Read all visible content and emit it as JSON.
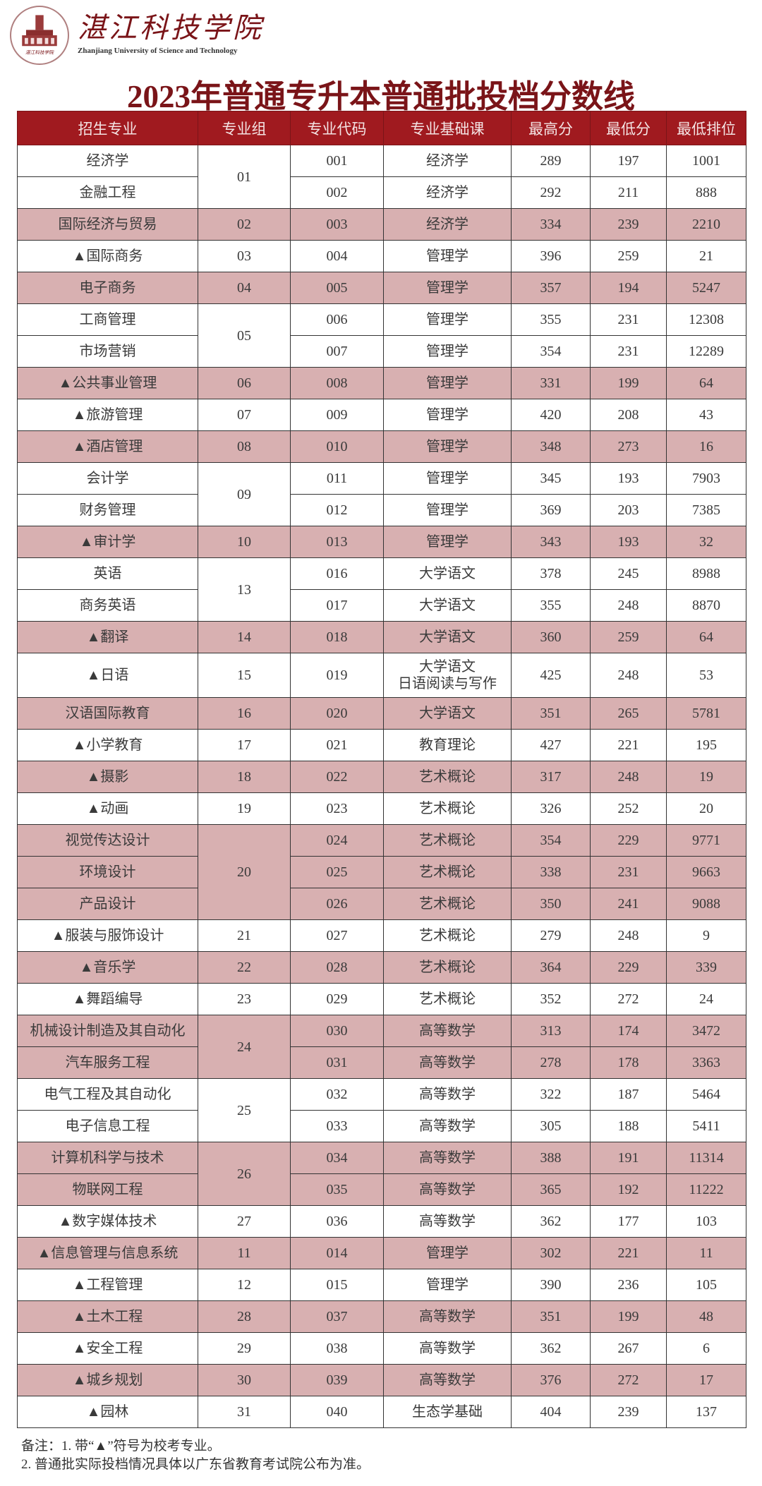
{
  "header": {
    "logo_text_cn": "湛江科技学院",
    "logo_text_en": "Zhanjiang University of Science and Technology",
    "title": "2023年普通专升本普通批投档分数线"
  },
  "colors": {
    "header_bg": "#a01a1f",
    "title": "#7a1418",
    "shaded_row": "#d8b0b1"
  },
  "table": {
    "columns": [
      "招生专业",
      "专业组",
      "专业代码",
      "专业基础课",
      "最高分",
      "最低分",
      "最低排位"
    ],
    "rows": [
      {
        "major": "经济学",
        "group": "01",
        "code": "001",
        "course": "经济学",
        "max": "289",
        "min": "197",
        "rank": "1001",
        "shaded": false
      },
      {
        "major": "金融工程",
        "group": "01",
        "code": "002",
        "course": "经济学",
        "max": "292",
        "min": "211",
        "rank": "888",
        "shaded": false
      },
      {
        "major": "国际经济与贸易",
        "group": "02",
        "code": "003",
        "course": "经济学",
        "max": "334",
        "min": "239",
        "rank": "2210",
        "shaded": true
      },
      {
        "major": "▲国际商务",
        "group": "03",
        "code": "004",
        "course": "管理学",
        "max": "396",
        "min": "259",
        "rank": "21",
        "shaded": false
      },
      {
        "major": "电子商务",
        "group": "04",
        "code": "005",
        "course": "管理学",
        "max": "357",
        "min": "194",
        "rank": "5247",
        "shaded": true
      },
      {
        "major": "工商管理",
        "group": "05",
        "code": "006",
        "course": "管理学",
        "max": "355",
        "min": "231",
        "rank": "12308",
        "shaded": false
      },
      {
        "major": "市场营销",
        "group": "05",
        "code": "007",
        "course": "管理学",
        "max": "354",
        "min": "231",
        "rank": "12289",
        "shaded": false
      },
      {
        "major": "▲公共事业管理",
        "group": "06",
        "code": "008",
        "course": "管理学",
        "max": "331",
        "min": "199",
        "rank": "64",
        "shaded": true
      },
      {
        "major": "▲旅游管理",
        "group": "07",
        "code": "009",
        "course": "管理学",
        "max": "420",
        "min": "208",
        "rank": "43",
        "shaded": false
      },
      {
        "major": "▲酒店管理",
        "group": "08",
        "code": "010",
        "course": "管理学",
        "max": "348",
        "min": "273",
        "rank": "16",
        "shaded": true
      },
      {
        "major": "会计学",
        "group": "09",
        "code": "011",
        "course": "管理学",
        "max": "345",
        "min": "193",
        "rank": "7903",
        "shaded": false
      },
      {
        "major": "财务管理",
        "group": "09",
        "code": "012",
        "course": "管理学",
        "max": "369",
        "min": "203",
        "rank": "7385",
        "shaded": false
      },
      {
        "major": "▲审计学",
        "group": "10",
        "code": "013",
        "course": "管理学",
        "max": "343",
        "min": "193",
        "rank": "32",
        "shaded": true
      },
      {
        "major": "英语",
        "group": "13",
        "code": "016",
        "course": "大学语文",
        "max": "378",
        "min": "245",
        "rank": "8988",
        "shaded": false
      },
      {
        "major": "商务英语",
        "group": "13",
        "code": "017",
        "course": "大学语文",
        "max": "355",
        "min": "248",
        "rank": "8870",
        "shaded": false
      },
      {
        "major": "▲翻译",
        "group": "14",
        "code": "018",
        "course": "大学语文",
        "max": "360",
        "min": "259",
        "rank": "64",
        "shaded": true
      },
      {
        "major": "▲日语",
        "group": "15",
        "code": "019",
        "course": "大学语文\n日语阅读与写作",
        "max": "425",
        "min": "248",
        "rank": "53",
        "shaded": false
      },
      {
        "major": "汉语国际教育",
        "group": "16",
        "code": "020",
        "course": "大学语文",
        "max": "351",
        "min": "265",
        "rank": "5781",
        "shaded": true
      },
      {
        "major": "▲小学教育",
        "group": "17",
        "code": "021",
        "course": "教育理论",
        "max": "427",
        "min": "221",
        "rank": "195",
        "shaded": false
      },
      {
        "major": "▲摄影",
        "group": "18",
        "code": "022",
        "course": "艺术概论",
        "max": "317",
        "min": "248",
        "rank": "19",
        "shaded": true
      },
      {
        "major": "▲动画",
        "group": "19",
        "code": "023",
        "course": "艺术概论",
        "max": "326",
        "min": "252",
        "rank": "20",
        "shaded": false
      },
      {
        "major": "视觉传达设计",
        "group": "20",
        "code": "024",
        "course": "艺术概论",
        "max": "354",
        "min": "229",
        "rank": "9771",
        "shaded": true
      },
      {
        "major": "环境设计",
        "group": "20",
        "code": "025",
        "course": "艺术概论",
        "max": "338",
        "min": "231",
        "rank": "9663",
        "shaded": true
      },
      {
        "major": "产品设计",
        "group": "20",
        "code": "026",
        "course": "艺术概论",
        "max": "350",
        "min": "241",
        "rank": "9088",
        "shaded": true
      },
      {
        "major": "▲服装与服饰设计",
        "group": "21",
        "code": "027",
        "course": "艺术概论",
        "max": "279",
        "min": "248",
        "rank": "9",
        "shaded": false
      },
      {
        "major": "▲音乐学",
        "group": "22",
        "code": "028",
        "course": "艺术概论",
        "max": "364",
        "min": "229",
        "rank": "339",
        "shaded": true
      },
      {
        "major": "▲舞蹈编导",
        "group": "23",
        "code": "029",
        "course": "艺术概论",
        "max": "352",
        "min": "272",
        "rank": "24",
        "shaded": false
      },
      {
        "major": "机械设计制造及其自动化",
        "group": "24",
        "code": "030",
        "course": "高等数学",
        "max": "313",
        "min": "174",
        "rank": "3472",
        "shaded": true
      },
      {
        "major": "汽车服务工程",
        "group": "24",
        "code": "031",
        "course": "高等数学",
        "max": "278",
        "min": "178",
        "rank": "3363",
        "shaded": true
      },
      {
        "major": "电气工程及其自动化",
        "group": "25",
        "code": "032",
        "course": "高等数学",
        "max": "322",
        "min": "187",
        "rank": "5464",
        "shaded": false
      },
      {
        "major": "电子信息工程",
        "group": "25",
        "code": "033",
        "course": "高等数学",
        "max": "305",
        "min": "188",
        "rank": "5411",
        "shaded": false
      },
      {
        "major": "计算机科学与技术",
        "group": "26",
        "code": "034",
        "course": "高等数学",
        "max": "388",
        "min": "191",
        "rank": "11314",
        "shaded": true
      },
      {
        "major": "物联网工程",
        "group": "26",
        "code": "035",
        "course": "高等数学",
        "max": "365",
        "min": "192",
        "rank": "11222",
        "shaded": true
      },
      {
        "major": "▲数字媒体技术",
        "group": "27",
        "code": "036",
        "course": "高等数学",
        "max": "362",
        "min": "177",
        "rank": "103",
        "shaded": false
      },
      {
        "major": "▲信息管理与信息系统",
        "group": "11",
        "code": "014",
        "course": "管理学",
        "max": "302",
        "min": "221",
        "rank": "11",
        "shaded": true
      },
      {
        "major": "▲工程管理",
        "group": "12",
        "code": "015",
        "course": "管理学",
        "max": "390",
        "min": "236",
        "rank": "105",
        "shaded": false
      },
      {
        "major": "▲土木工程",
        "group": "28",
        "code": "037",
        "course": "高等数学",
        "max": "351",
        "min": "199",
        "rank": "48",
        "shaded": true
      },
      {
        "major": "▲安全工程",
        "group": "29",
        "code": "038",
        "course": "高等数学",
        "max": "362",
        "min": "267",
        "rank": "6",
        "shaded": false
      },
      {
        "major": "▲城乡规划",
        "group": "30",
        "code": "039",
        "course": "高等数学",
        "max": "376",
        "min": "272",
        "rank": "17",
        "shaded": true
      },
      {
        "major": "▲园林",
        "group": "31",
        "code": "040",
        "course": "生态学基础",
        "max": "404",
        "min": "239",
        "rank": "137",
        "shaded": false
      }
    ]
  },
  "notes": [
    "备注：1. 带“▲”符号为校考专业。",
    "2. 普通批实际投档情况具体以广东省教育考试院公布为准。"
  ]
}
